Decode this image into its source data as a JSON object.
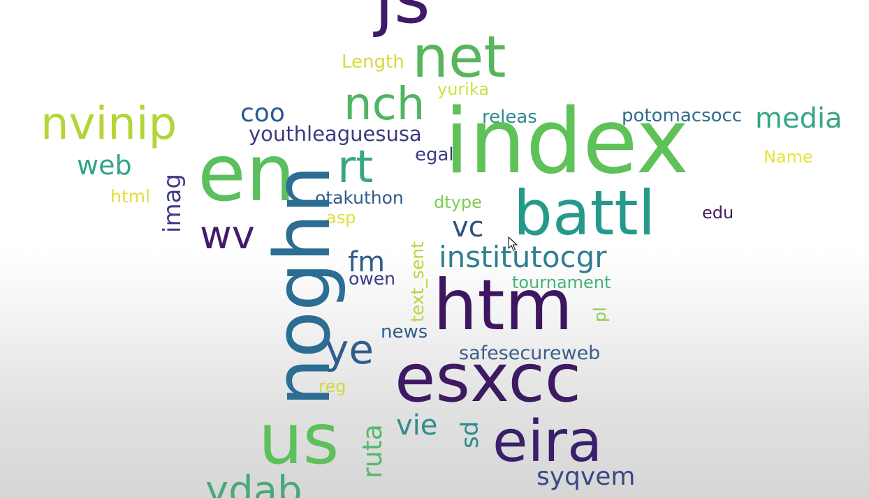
{
  "chart_data": {
    "type": "wordcloud",
    "title": "",
    "words": [
      {
        "text": "js",
        "color": "#3f1a69"
      },
      {
        "text": "net",
        "color": "#57b65b"
      },
      {
        "text": "Length",
        "color": "#d6db3a"
      },
      {
        "text": "yurika",
        "color": "#cfe040"
      },
      {
        "text": "nch",
        "color": "#4fb562"
      },
      {
        "text": "nvinip",
        "color": "#b2d637"
      },
      {
        "text": "coo",
        "color": "#2b5a8c"
      },
      {
        "text": "youthleaguesusa",
        "color": "#3c3a80"
      },
      {
        "text": "releas",
        "color": "#2f8b8d"
      },
      {
        "text": "potomacsocc",
        "color": "#2f6d90"
      },
      {
        "text": "media",
        "color": "#37a686"
      },
      {
        "text": "index",
        "color": "#5ec258"
      },
      {
        "text": "en",
        "color": "#5bbf5e"
      },
      {
        "text": "web",
        "color": "#32a388"
      },
      {
        "text": "egal",
        "color": "#3d3b82"
      },
      {
        "text": "rt",
        "color": "#37a586"
      },
      {
        "text": "Name",
        "color": "#e8e23a"
      },
      {
        "text": "html",
        "color": "#e2dd3a"
      },
      {
        "text": "imag",
        "color": "#3e3c86"
      },
      {
        "text": "otakuthon",
        "color": "#2f5b8a"
      },
      {
        "text": "dtype",
        "color": "#7ccd4c"
      },
      {
        "text": "battl",
        "color": "#259a8b"
      },
      {
        "text": "edu",
        "color": "#481a5e"
      },
      {
        "text": "asp",
        "color": "#dfe03c"
      },
      {
        "text": "wv",
        "color": "#431b6a"
      },
      {
        "text": "vc",
        "color": "#30507f"
      },
      {
        "text": "noghn",
        "color": "#2b6d93"
      },
      {
        "text": "institutocgr",
        "color": "#2e7f90"
      },
      {
        "text": "fm",
        "color": "#2f5d8d"
      },
      {
        "text": "owen",
        "color": "#3b3a82"
      },
      {
        "text": "text_sent",
        "color": "#b5d63a"
      },
      {
        "text": "tournament",
        "color": "#43b27a"
      },
      {
        "text": "htm",
        "color": "#3e1660"
      },
      {
        "text": "pl",
        "color": "#8fcf48"
      },
      {
        "text": "news",
        "color": "#2f5d8b"
      },
      {
        "text": "ye",
        "color": "#2e5f8c"
      },
      {
        "text": "safesecureweb",
        "color": "#3a5f8c"
      },
      {
        "text": "esxcc",
        "color": "#3d1a62"
      },
      {
        "text": "reg",
        "color": "#cfdc3c"
      },
      {
        "text": "us",
        "color": "#5dc05a"
      },
      {
        "text": "ruta",
        "color": "#54b86b"
      },
      {
        "text": "vie",
        "color": "#2e8e8c"
      },
      {
        "text": "sd",
        "color": "#2d8b8c"
      },
      {
        "text": "eira",
        "color": "#3a1f6a"
      },
      {
        "text": "syqvem",
        "color": "#3a4785"
      },
      {
        "text": "ydab",
        "color": "#4aa977"
      }
    ]
  }
}
